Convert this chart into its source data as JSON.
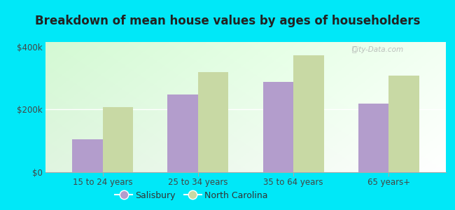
{
  "title": "Breakdown of mean house values by ages of householders",
  "categories": [
    "15 to 24 years",
    "25 to 34 years",
    "35 to 64 years",
    "65 years+"
  ],
  "salisbury": [
    105000,
    248000,
    287000,
    218000
  ],
  "north_carolina": [
    207000,
    318000,
    373000,
    308000
  ],
  "salisbury_color": "#b39dcc",
  "north_carolina_color": "#c8d9a4",
  "background_color": "#00e8f8",
  "ylabel_ticks": [
    0,
    200000,
    400000
  ],
  "ylabel_labels": [
    "$0",
    "$200k",
    "$400k"
  ],
  "ylim": [
    0,
    415000
  ],
  "bar_width": 0.32,
  "legend_labels": [
    "Salisbury",
    "North Carolina"
  ],
  "watermark": "City-Data.com"
}
